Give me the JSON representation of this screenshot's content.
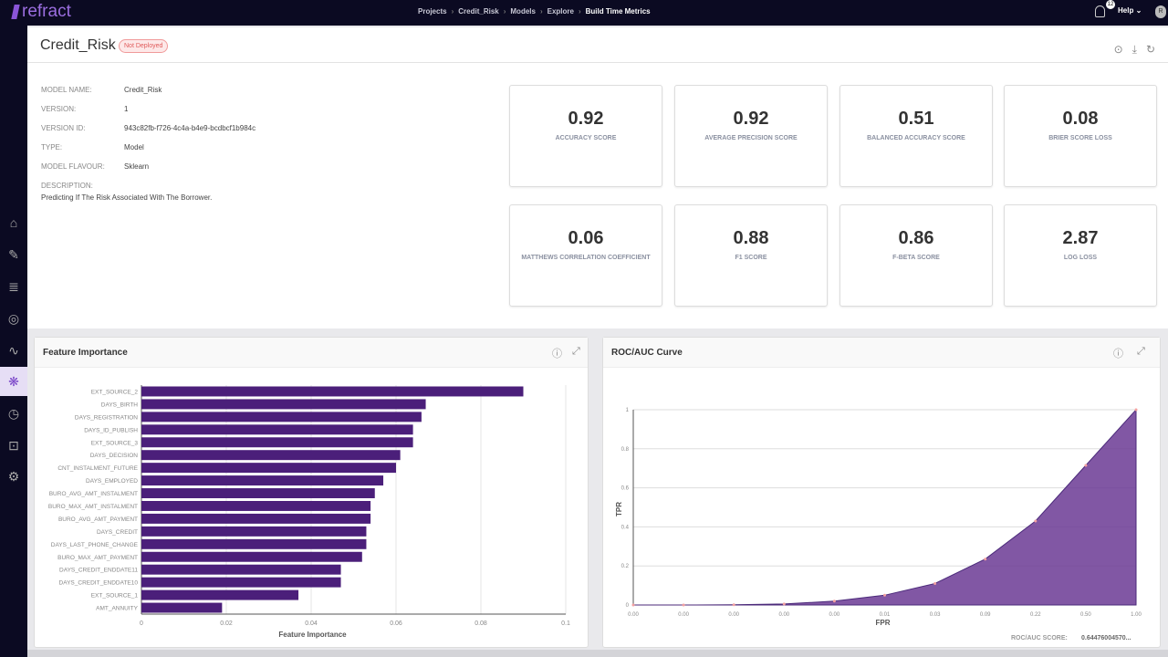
{
  "topbar": {
    "logo": "refract",
    "breadcrumbs": [
      "Projects",
      "Credit_Risk",
      "Models",
      "Explore",
      "Build Time Metrics"
    ],
    "notifications": "12",
    "help": "Help",
    "avatar": "R"
  },
  "sidebar": {
    "items": [
      {
        "icon": "home-icon"
      },
      {
        "icon": "edit-icon"
      },
      {
        "icon": "database-icon"
      },
      {
        "icon": "aperture-icon"
      },
      {
        "icon": "graph-icon"
      },
      {
        "icon": "model-icon",
        "active": true
      },
      {
        "icon": "clock-icon"
      },
      {
        "icon": "monitor-icon"
      },
      {
        "icon": "deploy-icon"
      }
    ]
  },
  "header": {
    "title": "Credit_Risk",
    "status": "Not Deployed",
    "status_color": "#e05a5a"
  },
  "info": [
    {
      "label": "MODEL NAME:",
      "value": "Credit_Risk"
    },
    {
      "label": "VERSION:",
      "value": "1"
    },
    {
      "label": "VERSION ID:",
      "value": "943c82fb-f726-4c4a-b4e9-bcdbcf1b984c"
    },
    {
      "label": "TYPE:",
      "value": "Model"
    },
    {
      "label": "MODEL FLAVOUR:",
      "value": "Sklearn"
    }
  ],
  "description": {
    "label": "DESCRIPTION:",
    "value": "Predicting If The Risk Associated With The Borrower."
  },
  "metrics": [
    {
      "value": "0.92",
      "label": "ACCURACY SCORE"
    },
    {
      "value": "0.92",
      "label": "AVERAGE PRECISION SCORE"
    },
    {
      "value": "0.51",
      "label": "BALANCED ACCURACY SCORE"
    },
    {
      "value": "0.08",
      "label": "BRIER SCORE LOSS"
    },
    {
      "value": "0.06",
      "label": "MATTHEWS CORRELATION COEFFICIENT"
    },
    {
      "value": "0.88",
      "label": "F1 SCORE"
    },
    {
      "value": "0.86",
      "label": "F-BETA SCORE"
    },
    {
      "value": "2.87",
      "label": "LOG LOSS"
    }
  ],
  "feature_panel": {
    "title": "Feature Importance"
  },
  "roc_panel": {
    "title": "ROC/AUC Curve",
    "score_label": "ROC/AUC SCORE:",
    "score_value": "0.64476004570..."
  },
  "chart_data": [
    {
      "type": "bar",
      "orientation": "horizontal",
      "xlabel": "Feature Importance",
      "xlim": [
        0,
        0.1
      ],
      "xticks": [
        "0",
        "0.02",
        "0.04",
        "0.06",
        "0.08",
        "0.1"
      ],
      "grid": true,
      "color": "#4b1f7a",
      "categories": [
        "EXT_SOURCE_2",
        "DAYS_BIRTH",
        "DAYS_REGISTRATION",
        "DAYS_ID_PUBLISH",
        "EXT_SOURCE_3",
        "DAYS_DECISION",
        "CNT_INSTALMENT_FUTURE",
        "DAYS_EMPLOYED",
        "BURO_AVG_AMT_INSTALMENT",
        "BURO_MAX_AMT_INSTALMENT",
        "BURO_AVG_AMT_PAYMENT",
        "DAYS_CREDIT",
        "DAYS_LAST_PHONE_CHANGE",
        "BURO_MAX_AMT_PAYMENT",
        "DAYS_CREDIT_ENDDATE11",
        "DAYS_CREDIT_ENDDATE10",
        "EXT_SOURCE_1",
        "AMT_ANNUITY"
      ],
      "values": [
        0.09,
        0.067,
        0.066,
        0.064,
        0.064,
        0.061,
        0.06,
        0.057,
        0.055,
        0.054,
        0.054,
        0.053,
        0.053,
        0.052,
        0.047,
        0.047,
        0.037,
        0.019
      ]
    },
    {
      "type": "area",
      "xlabel": "FPR",
      "ylabel": "TPR",
      "ylim": [
        0,
        1
      ],
      "yticks": [
        "0",
        "0.2",
        "0.4",
        "0.6",
        "0.8",
        "1"
      ],
      "grid": true,
      "color": "#6b3a94",
      "x": [
        "0.00",
        "0.00",
        "0.00",
        "0.00",
        "0.00",
        "0.01",
        "0.03",
        "0.09",
        "0.22",
        "0.50",
        "1.00"
      ],
      "y": [
        0,
        0,
        0.001,
        0.005,
        0.02,
        0.05,
        0.11,
        0.235,
        0.43,
        0.715,
        1
      ]
    }
  ]
}
